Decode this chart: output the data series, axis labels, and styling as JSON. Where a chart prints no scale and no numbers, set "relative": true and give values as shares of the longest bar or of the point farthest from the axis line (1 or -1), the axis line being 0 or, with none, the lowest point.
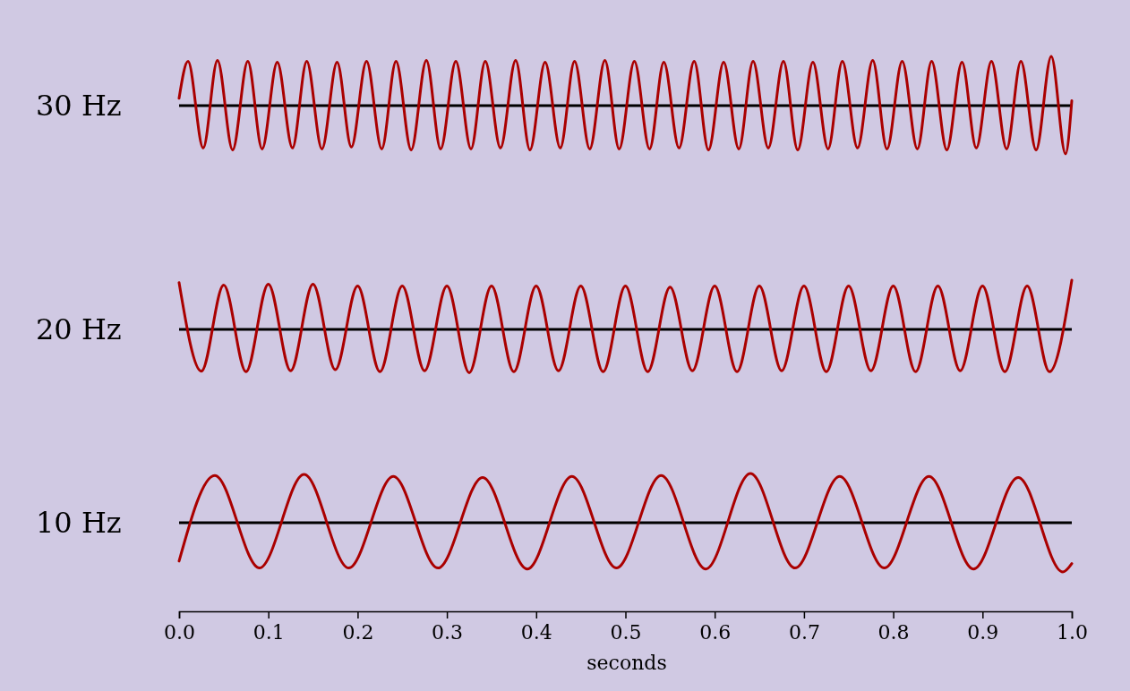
{
  "chart_data": [
    {
      "type": "line",
      "ylabel": "30 Hz",
      "relative": true,
      "xlim": [
        0,
        1
      ],
      "tick_labels": false,
      "line_style": "solid",
      "series": [
        {
          "color": "#aa0000",
          "x": [
            0,
            0.01,
            0.027,
            0.043,
            0.06,
            0.077,
            0.093,
            0.11,
            0.127,
            0.143,
            0.16,
            0.177,
            0.193,
            0.21,
            0.227,
            0.243,
            0.26,
            0.277,
            0.293,
            0.31,
            0.327,
            0.343,
            0.36,
            0.377,
            0.393,
            0.41,
            0.427,
            0.443,
            0.46,
            0.477,
            0.493,
            0.51,
            0.527,
            0.543,
            0.56,
            0.577,
            0.593,
            0.61,
            0.627,
            0.643,
            0.66,
            0.677,
            0.693,
            0.71,
            0.727,
            0.743,
            0.76,
            0.777,
            0.793,
            0.81,
            0.827,
            0.843,
            0.86,
            0.877,
            0.893,
            0.91,
            0.927,
            0.943,
            0.96,
            0.977,
            0.993,
            1
          ],
          "values": [
            0.15,
            0.9,
            -0.86,
            0.92,
            -0.9,
            0.9,
            -0.88,
            0.88,
            -0.86,
            0.9,
            -0.88,
            0.88,
            -0.84,
            0.9,
            -0.88,
            0.9,
            -0.9,
            0.92,
            -0.88,
            0.9,
            -0.88,
            0.9,
            -0.86,
            0.92,
            -0.9,
            0.88,
            -0.86,
            0.9,
            -0.88,
            0.92,
            -0.88,
            0.9,
            -0.88,
            0.88,
            -0.86,
            0.9,
            -0.9,
            0.88,
            -0.88,
            0.9,
            -0.86,
            0.9,
            -0.9,
            0.88,
            -0.88,
            0.9,
            -0.86,
            0.92,
            -0.88,
            0.9,
            -0.88,
            0.9,
            -0.9,
            0.88,
            -0.86,
            0.9,
            -0.88,
            0.9,
            -0.9,
            1,
            -0.98,
            0.1
          ]
        }
      ]
    },
    {
      "type": "line",
      "ylabel": "20 Hz",
      "relative": true,
      "xlim": [
        0,
        1
      ],
      "tick_labels": false,
      "line_style": "solid",
      "series": [
        {
          "color": "#aa0000",
          "x": [
            0,
            0.025,
            0.05,
            0.075,
            0.1,
            0.125,
            0.15,
            0.175,
            0.2,
            0.225,
            0.25,
            0.275,
            0.3,
            0.325,
            0.35,
            0.375,
            0.4,
            0.425,
            0.45,
            0.475,
            0.5,
            0.525,
            0.55,
            0.575,
            0.6,
            0.625,
            0.65,
            0.675,
            0.7,
            0.725,
            0.75,
            0.775,
            0.8,
            0.825,
            0.85,
            0.875,
            0.9,
            0.925,
            0.95,
            0.975,
            1
          ],
          "values": [
            0.95,
            -0.85,
            0.9,
            -0.86,
            0.92,
            -0.84,
            0.92,
            -0.82,
            0.88,
            -0.86,
            0.88,
            -0.84,
            0.88,
            -0.88,
            0.88,
            -0.86,
            0.88,
            -0.84,
            0.88,
            -0.86,
            0.88,
            -0.86,
            0.86,
            -0.84,
            0.88,
            -0.86,
            0.88,
            -0.84,
            0.88,
            -0.86,
            0.88,
            -0.84,
            0.88,
            -0.86,
            0.88,
            -0.84,
            0.88,
            -0.86,
            0.88,
            -0.86,
            1
          ]
        }
      ]
    },
    {
      "type": "line",
      "ylabel": "10 Hz",
      "xlabel": "seconds",
      "relative": true,
      "xlim": [
        0,
        1
      ],
      "tick_labels": "x",
      "line_style": "solid",
      "xticks": [
        {
          "value": 0,
          "label": "0.0"
        },
        0.1,
        0.2,
        0.3,
        0.4,
        0.5,
        0.6,
        0.7,
        0.8,
        0.9,
        {
          "value": 1,
          "label": "1.0"
        }
      ],
      "series": [
        {
          "color": "#aa0000",
          "x": [
            0,
            0.04,
            0.09,
            0.14,
            0.19,
            0.24,
            0.29,
            0.34,
            0.39,
            0.44,
            0.49,
            0.54,
            0.59,
            0.64,
            0.69,
            0.74,
            0.79,
            0.84,
            0.89,
            0.94,
            0.99,
            1
          ],
          "values": [
            -0.78,
            0.96,
            -0.92,
            0.98,
            -0.92,
            0.94,
            -0.92,
            0.92,
            -0.94,
            0.94,
            -0.92,
            0.96,
            -0.94,
            1,
            -0.92,
            0.94,
            -0.92,
            0.94,
            -0.94,
            0.92,
            -1,
            -0.83
          ]
        }
      ]
    }
  ]
}
